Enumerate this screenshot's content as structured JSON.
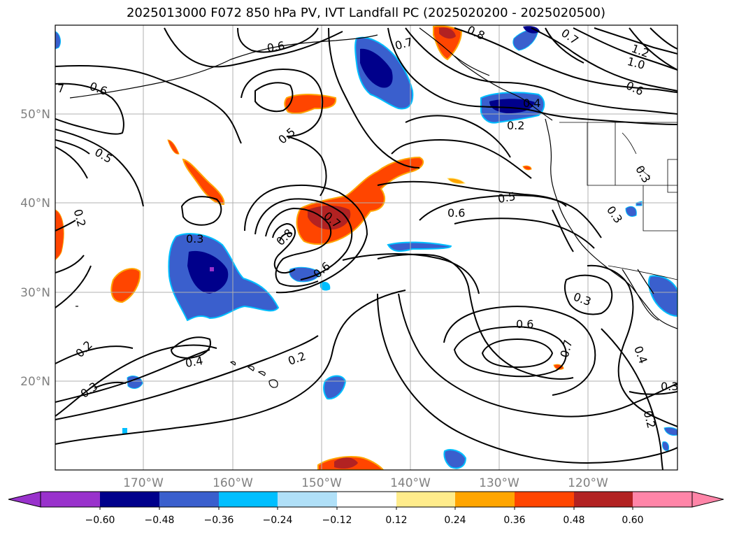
{
  "title": "2025013000 F072 850 hPa PV, IVT Landfall PC (2025020200 - 2025020500)",
  "lat_labels": [
    "50°N",
    "40°N",
    "30°N",
    "20°N"
  ],
  "lon_labels": [
    "170°W",
    "160°W",
    "150°W",
    "140°W",
    "130°W",
    "120°W"
  ],
  "contour_labels": [
    {
      "id": "c1",
      "text": "0.6"
    },
    {
      "id": "c2",
      "text": "0.7"
    },
    {
      "id": "c3",
      "text": "0.8"
    },
    {
      "id": "c4",
      "text": "0.7"
    },
    {
      "id": "c5",
      "text": "1.2"
    },
    {
      "id": "c6",
      "text": "1.0"
    },
    {
      "id": "c7",
      "text": "0.6"
    },
    {
      "id": "c8",
      "text": "0.6"
    },
    {
      "id": "c9",
      "text": "7"
    },
    {
      "id": "c10",
      "text": "0.5"
    },
    {
      "id": "c11",
      "text": "0.4"
    },
    {
      "id": "c12",
      "text": "0.2"
    },
    {
      "id": "c13",
      "text": "0.5"
    },
    {
      "id": "c14",
      "text": "0.3"
    },
    {
      "id": "c15",
      "text": "0.5"
    },
    {
      "id": "c16",
      "text": "0.6"
    },
    {
      "id": "c17",
      "text": "0.2"
    },
    {
      "id": "c18",
      "text": "0.3"
    },
    {
      "id": "c19",
      "text": "0.8"
    },
    {
      "id": "c20",
      "text": "0.7"
    },
    {
      "id": "c21",
      "text": "0.6"
    },
    {
      "id": "c22",
      "text": "0.3"
    },
    {
      "id": "c23",
      "text": "0.3"
    },
    {
      "id": "c24",
      "text": "0.6"
    },
    {
      "id": "c25",
      "text": "0.7"
    },
    {
      "id": "c26",
      "text": "0.2"
    },
    {
      "id": "c27",
      "text": "0.4"
    },
    {
      "id": "c28",
      "text": "0.2"
    },
    {
      "id": "c29",
      "text": "0.3"
    },
    {
      "id": "c30",
      "text": "0.4"
    },
    {
      "id": "c31",
      "text": "0.3"
    },
    {
      "id": "c32",
      "text": "0.2"
    }
  ],
  "colorbar": {
    "ticks": [
      "−0.60",
      "−0.48",
      "−0.36",
      "−0.24",
      "−0.12",
      "0.12",
      "0.24",
      "0.36",
      "0.48",
      "0.60"
    ],
    "colors": [
      "#9932cc",
      "#00008b",
      "#3a5fcd",
      "#00bfff",
      "#b0e0f8",
      "#ffffff",
      "#ffec8b",
      "#ffa500",
      "#ff4500",
      "#b22222",
      "#ff85a8"
    ]
  }
}
